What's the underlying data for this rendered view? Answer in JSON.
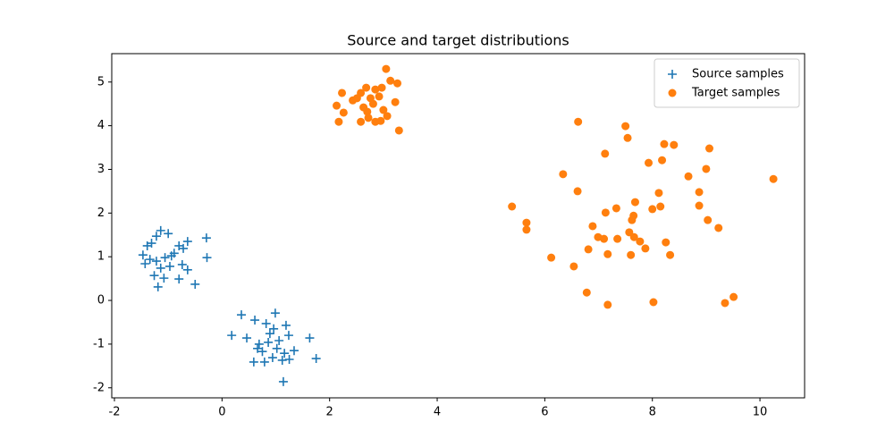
{
  "chart_data": {
    "type": "scatter",
    "title": "Source and target distributions",
    "xlim": [
      -2.05,
      10.83
    ],
    "ylim": [
      -2.23,
      5.65
    ],
    "xticks": [
      -2,
      0,
      2,
      4,
      6,
      8,
      10
    ],
    "yticks": [
      -2,
      -1,
      0,
      1,
      2,
      3,
      4,
      5
    ],
    "legend": "upper right",
    "series": [
      {
        "name": "Source samples",
        "color": "#1f77b4",
        "marker": "+",
        "x": [
          -1.14,
          -1.0,
          -1.22,
          -0.29,
          -1.39,
          -1.31,
          -0.8,
          -0.64,
          -0.72,
          -1.47,
          -1.34,
          -1.22,
          -1.06,
          -0.89,
          -0.74,
          -0.64,
          -0.28,
          -1.43,
          -1.26,
          -1.08,
          -0.8,
          -0.5,
          -1.19,
          -0.97,
          -1.14,
          -0.94,
          0.36,
          0.99,
          0.18,
          0.46,
          0.61,
          0.82,
          0.96,
          1.19,
          1.24,
          1.63,
          0.69,
          0.86,
          1.02,
          1.16,
          1.34,
          0.59,
          0.79,
          0.94,
          1.12,
          1.25,
          1.75,
          1.14,
          0.75,
          1.06,
          0.66,
          0.89
        ],
        "y": [
          1.6,
          1.53,
          1.47,
          1.43,
          1.25,
          1.31,
          1.25,
          1.35,
          1.19,
          1.04,
          0.94,
          0.9,
          0.98,
          1.08,
          0.82,
          0.7,
          0.98,
          0.84,
          0.57,
          0.51,
          0.49,
          0.37,
          0.31,
          0.78,
          0.74,
          1.02,
          -0.33,
          -0.29,
          -0.8,
          -0.86,
          -0.45,
          -0.53,
          -0.65,
          -0.57,
          -0.8,
          -0.86,
          -1.0,
          -0.96,
          -1.1,
          -1.21,
          -1.15,
          -1.41,
          -1.41,
          -1.31,
          -1.37,
          -1.35,
          -1.33,
          -1.86,
          -1.17,
          -0.92,
          -1.1,
          -0.76
        ]
      },
      {
        "name": "Target samples",
        "color": "#ff7f0e",
        "marker": "o",
        "x": [
          5.39,
          5.66,
          5.66,
          6.12,
          6.34,
          6.54,
          6.61,
          6.62,
          6.78,
          6.81,
          6.89,
          6.99,
          7.1,
          7.12,
          7.13,
          7.17,
          7.17,
          7.33,
          7.35,
          7.5,
          7.54,
          7.57,
          7.6,
          7.62,
          7.65,
          7.66,
          7.68,
          7.77,
          7.87,
          7.93,
          8.0,
          8.02,
          8.12,
          8.15,
          8.18,
          8.22,
          8.25,
          8.33,
          8.4,
          8.67,
          8.87,
          8.87,
          9.0,
          9.03,
          9.06,
          9.23,
          9.35,
          9.51,
          10.25,
          3.05,
          3.13,
          3.26,
          3.29,
          3.22,
          3.07,
          2.85,
          2.58,
          2.23,
          2.13,
          2.26,
          2.17,
          2.43,
          2.58,
          2.63,
          2.7,
          2.92,
          2.97,
          3.0,
          2.76,
          2.68,
          2.85,
          2.95,
          2.51,
          2.81,
          2.72
        ],
        "y": [
          2.15,
          1.78,
          1.62,
          0.98,
          2.89,
          0.78,
          2.5,
          4.09,
          0.18,
          1.17,
          1.7,
          1.45,
          1.41,
          3.36,
          2.01,
          -0.1,
          1.06,
          2.11,
          1.41,
          3.99,
          3.72,
          1.56,
          1.04,
          1.84,
          1.94,
          1.45,
          2.25,
          1.35,
          1.19,
          3.15,
          2.09,
          -0.04,
          2.46,
          2.15,
          3.21,
          3.58,
          1.33,
          1.04,
          3.56,
          2.84,
          2.48,
          2.17,
          3.01,
          1.84,
          3.48,
          1.66,
          -0.06,
          0.08,
          2.78,
          5.3,
          5.03,
          4.97,
          3.89,
          4.54,
          4.22,
          4.83,
          4.75,
          4.75,
          4.46,
          4.3,
          4.09,
          4.58,
          4.09,
          4.42,
          4.32,
          4.67,
          4.87,
          4.36,
          4.63,
          4.87,
          4.09,
          4.11,
          4.63,
          4.5,
          4.18
        ]
      }
    ]
  }
}
